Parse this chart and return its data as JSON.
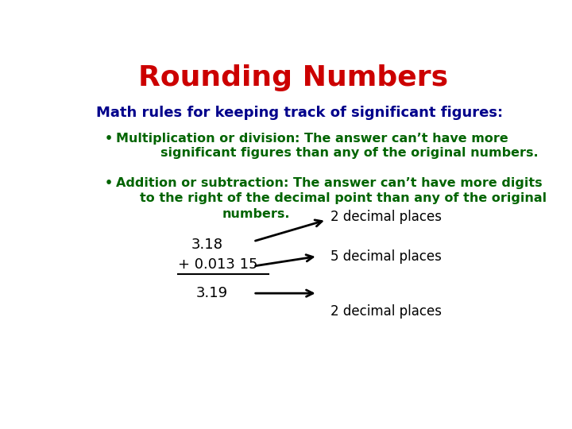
{
  "title": "Rounding Numbers",
  "title_color": "#cc0000",
  "title_fontsize": 26,
  "subtitle": "Math rules for keeping track of significant figures:",
  "subtitle_color": "#00008B",
  "subtitle_fontsize": 13,
  "bullet1_bold": "Multiplication or division",
  "bullet1_rest": ": The answer can’t have more",
  "bullet1_line2": "significant figures than any of the original numbers.",
  "bullet2_bold": "Addition or subtraction",
  "bullet2_rest": ": The answer can’t have more digits",
  "bullet2_line2": "to the right of the decimal point than any of the original",
  "bullet2_line3": "numbers.",
  "bullet_color_bold": "#006400",
  "bullet_color_rest": "#006400",
  "bullet_fontsize": 11.5,
  "math_line1": "3.18",
  "math_line2": "+ 0.013 15",
  "math_line3": "3.19",
  "math_arrow1_label": "2 decimal places",
  "math_arrow2_label": "5 decimal places",
  "math_arrow3_label": "2 decimal places",
  "math_fontsize": 13,
  "math_label_fontsize": 12,
  "background_color": "#ffffff"
}
